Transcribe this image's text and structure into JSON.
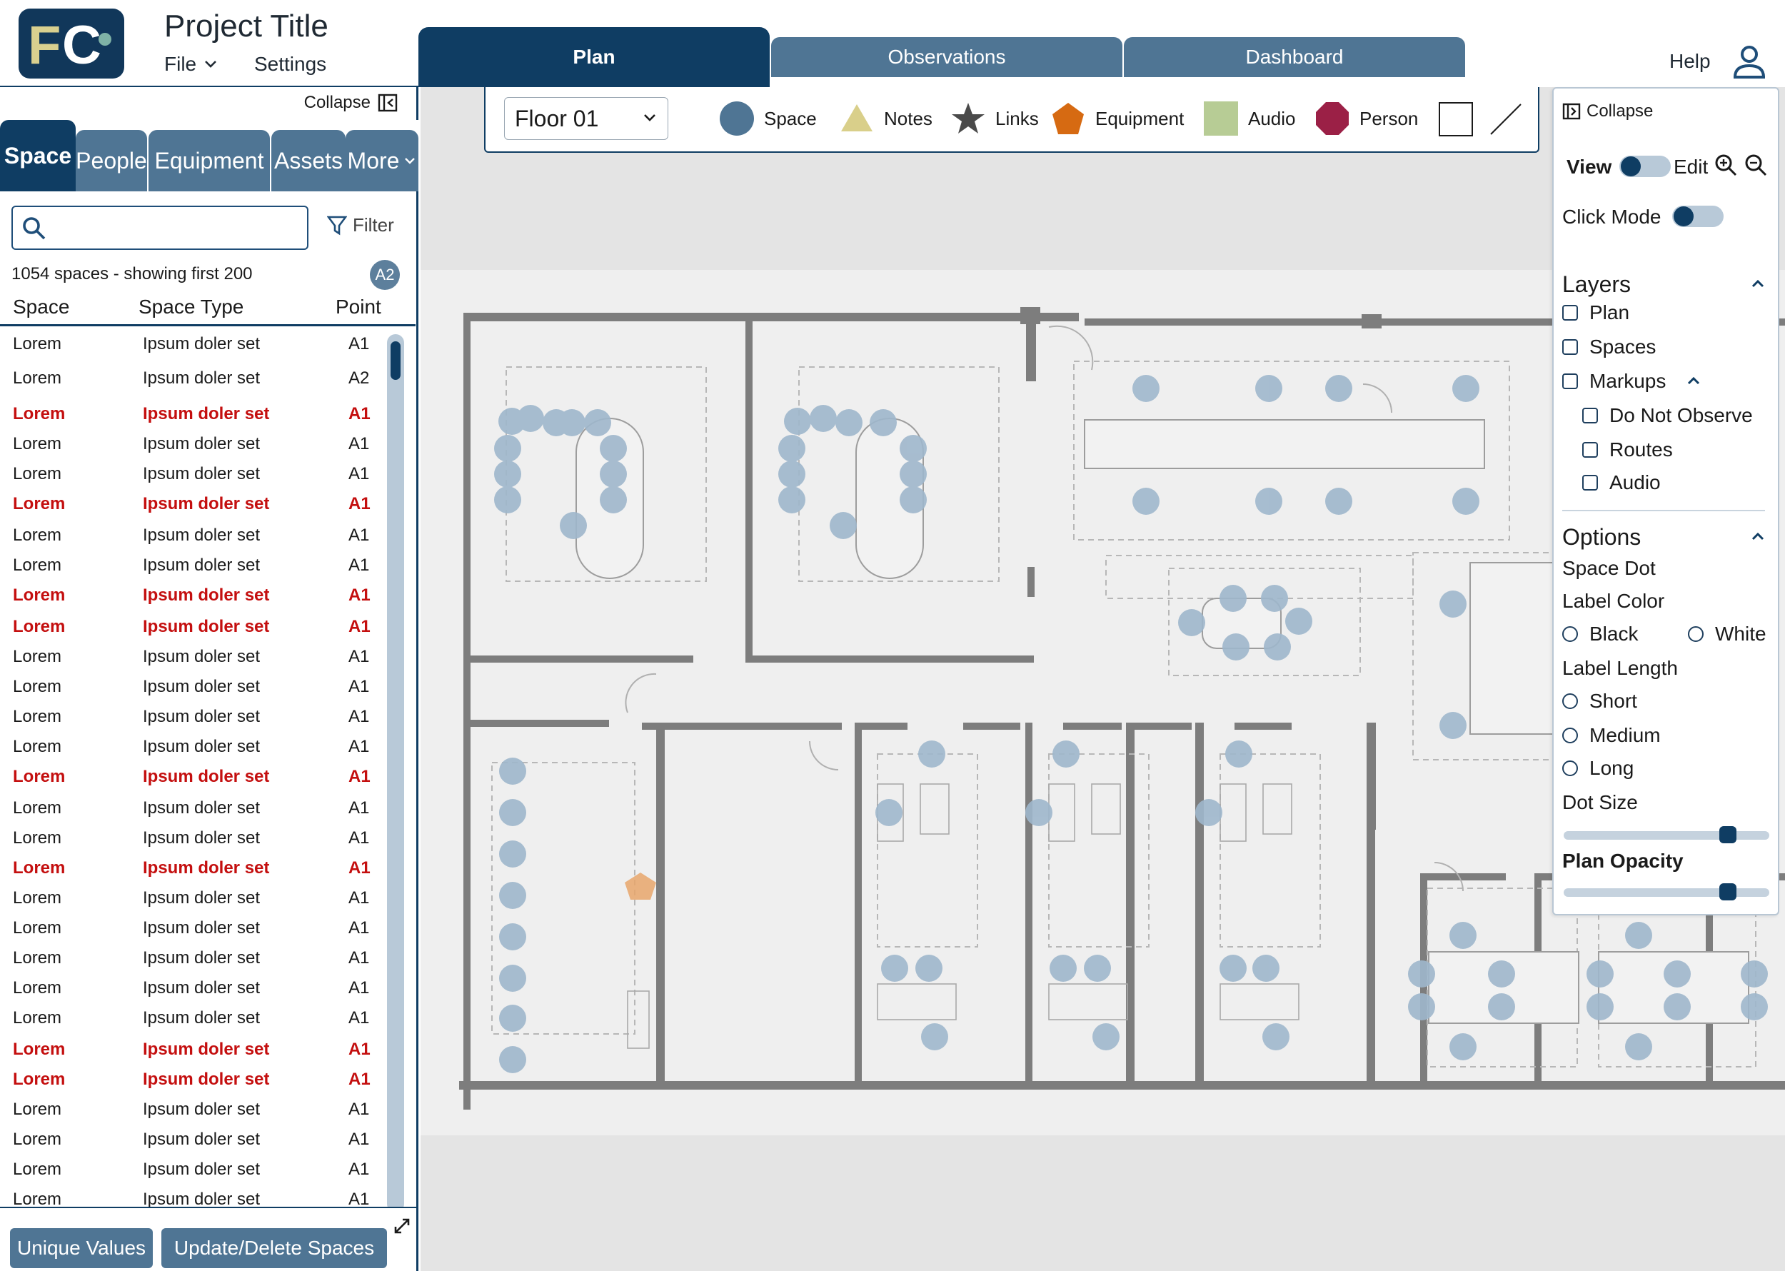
{
  "header": {
    "logo_text": "FC",
    "project_title": "Project Title",
    "menu": {
      "file": "File",
      "settings": "Settings"
    },
    "tabs": [
      {
        "label": "Plan",
        "active": true
      },
      {
        "label": "Observations",
        "active": false
      },
      {
        "label": "Dashboard",
        "active": false
      }
    ],
    "help": "Help"
  },
  "sidebar": {
    "collapse_label": "Collapse",
    "tabs": [
      "Space",
      "People",
      "Equipment",
      "Assets",
      "More"
    ],
    "search": {
      "value": "",
      "placeholder": ""
    },
    "filter_label": "Filter",
    "count_text": "1054 spaces - showing first 200",
    "badge": "A2",
    "columns": [
      "Space",
      "Space Type",
      "Point"
    ],
    "rows": [
      {
        "space": "Lorem",
        "type": "Ipsum doler set",
        "point": "A1",
        "flag": false
      },
      {
        "space": "Lorem",
        "type": "Ipsum doler set",
        "point": "A2",
        "flag": false
      },
      {
        "space": "Lorem",
        "type": "Ipsum doler set",
        "point": "A1",
        "flag": true
      },
      {
        "space": "Lorem",
        "type": "Ipsum doler set",
        "point": "A1",
        "flag": false
      },
      {
        "space": "Lorem",
        "type": "Ipsum doler set",
        "point": "A1",
        "flag": false
      },
      {
        "space": "Lorem",
        "type": "Ipsum doler set",
        "point": "A1",
        "flag": true
      },
      {
        "space": "Lorem",
        "type": "Ipsum doler set",
        "point": "A1",
        "flag": false
      },
      {
        "space": "Lorem",
        "type": "Ipsum doler set",
        "point": "A1",
        "flag": false
      },
      {
        "space": "Lorem",
        "type": "Ipsum doler set",
        "point": "A1",
        "flag": true
      },
      {
        "space": "Lorem",
        "type": "Ipsum doler set",
        "point": "A1",
        "flag": true
      },
      {
        "space": "Lorem",
        "type": "Ipsum doler set",
        "point": "A1",
        "flag": false
      },
      {
        "space": "Lorem",
        "type": "Ipsum doler set",
        "point": "A1",
        "flag": false
      },
      {
        "space": "Lorem",
        "type": "Ipsum doler set",
        "point": "A1",
        "flag": false
      },
      {
        "space": "Lorem",
        "type": "Ipsum doler set",
        "point": "A1",
        "flag": false
      },
      {
        "space": "Lorem",
        "type": "Ipsum doler set",
        "point": "A1",
        "flag": true
      },
      {
        "space": "Lorem",
        "type": "Ipsum doler set",
        "point": "A1",
        "flag": false
      },
      {
        "space": "Lorem",
        "type": "Ipsum doler set",
        "point": "A1",
        "flag": false
      },
      {
        "space": "Lorem",
        "type": "Ipsum doler set",
        "point": "A1",
        "flag": true
      },
      {
        "space": "Lorem",
        "type": "Ipsum doler set",
        "point": "A1",
        "flag": false
      },
      {
        "space": "Lorem",
        "type": "Ipsum doler set",
        "point": "A1",
        "flag": false
      },
      {
        "space": "Lorem",
        "type": "Ipsum doler set",
        "point": "A1",
        "flag": false
      },
      {
        "space": "Lorem",
        "type": "Ipsum doler set",
        "point": "A1",
        "flag": false
      },
      {
        "space": "Lorem",
        "type": "Ipsum doler set",
        "point": "A1",
        "flag": false
      },
      {
        "space": "Lorem",
        "type": "Ipsum doler set",
        "point": "A1",
        "flag": true
      },
      {
        "space": "Lorem",
        "type": "Ipsum doler set",
        "point": "A1",
        "flag": true
      },
      {
        "space": "Lorem",
        "type": "Ipsum doler set",
        "point": "A1",
        "flag": false
      },
      {
        "space": "Lorem",
        "type": "Ipsum doler set",
        "point": "A1",
        "flag": false
      },
      {
        "space": "Lorem",
        "type": "Ipsum doler set",
        "point": "A1",
        "flag": false
      },
      {
        "space": "Lorem",
        "type": "Ipsum doler set",
        "point": "A1",
        "flag": false
      }
    ],
    "buttons": {
      "unique": "Unique Values",
      "update": "Update/Delete Spaces"
    }
  },
  "toolbar": {
    "floor": "Floor 01",
    "legend": [
      {
        "label": "Space",
        "icon": "circle-icon",
        "color": "#4f7594"
      },
      {
        "label": "Notes",
        "icon": "triangle-icon",
        "color": "#d9cf8a"
      },
      {
        "label": "Links",
        "icon": "star-icon",
        "color": "#4a4a4a"
      },
      {
        "label": "Equipment",
        "icon": "pentagon-icon",
        "color": "#d66a12"
      },
      {
        "label": "Audio",
        "icon": "square-icon",
        "color": "#b7cc95"
      },
      {
        "label": "Person",
        "icon": "octagon-icon",
        "color": "#9b2046"
      }
    ]
  },
  "right_panel": {
    "collapse_label": "Collapse",
    "view_label": "View",
    "edit_label": "Edit",
    "click_mode_label": "Click Mode",
    "layers_title": "Layers",
    "layers": [
      "Plan",
      "Spaces",
      "Markups"
    ],
    "markup_layers": [
      "Do Not Observe",
      "Routes",
      "Audio"
    ],
    "options_title": "Options",
    "space_dot_label": "Space Dot",
    "label_color_label": "Label Color",
    "label_colors": [
      "Black",
      "White"
    ],
    "label_length_label": "Label Length",
    "label_lengths": [
      "Short",
      "Medium",
      "Long"
    ],
    "dot_size_label": "Dot Size",
    "dot_size_value": 0.8,
    "plan_opacity_label": "Plan Opacity",
    "plan_opacity_value": 0.8
  }
}
